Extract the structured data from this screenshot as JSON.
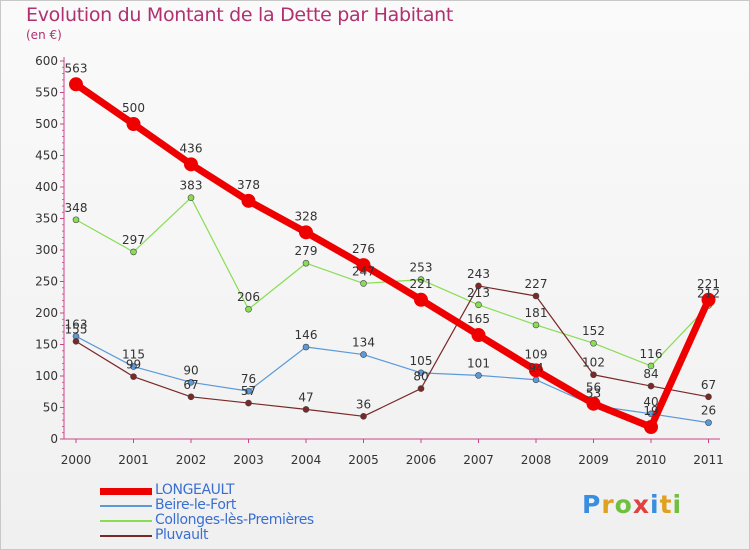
{
  "title": "Evolution du Montant de la Dette par Habitant",
  "subtitle": "(en €)",
  "logo_text": "Proxiti",
  "chart_data": {
    "type": "line",
    "x": [
      "2000",
      "2001",
      "2002",
      "2003",
      "2004",
      "2005",
      "2006",
      "2007",
      "2008",
      "2009",
      "2010",
      "2011"
    ],
    "ylim": [
      0,
      600
    ],
    "yticks": [
      0,
      50,
      100,
      150,
      200,
      250,
      300,
      350,
      400,
      450,
      500,
      550,
      600
    ],
    "grid": false,
    "legend_position": "bottom-left",
    "series": [
      {
        "name": "LONGEAULT",
        "color": "#ee0000",
        "width": 7,
        "marker": 7,
        "values": [
          563,
          500,
          436,
          378,
          328,
          276,
          221,
          165,
          109,
          56,
          19,
          221
        ]
      },
      {
        "name": "Beire-le-Fort",
        "color": "#5a9ad8",
        "width": 1.2,
        "marker": 3,
        "values": [
          163,
          115,
          90,
          76,
          146,
          134,
          105,
          101,
          94,
          53,
          40,
          26
        ]
      },
      {
        "name": "Collonges-lès-Premières",
        "color": "#88dd55",
        "width": 1.2,
        "marker": 3,
        "values": [
          348,
          297,
          383,
          206,
          279,
          247,
          253,
          213,
          181,
          152,
          116,
          212
        ]
      },
      {
        "name": "Pluvault",
        "color": "#7a2828",
        "width": 1.2,
        "marker": 3,
        "values": [
          155,
          99,
          67,
          57,
          47,
          36,
          80,
          243,
          227,
          102,
          84,
          67
        ]
      }
    ]
  }
}
